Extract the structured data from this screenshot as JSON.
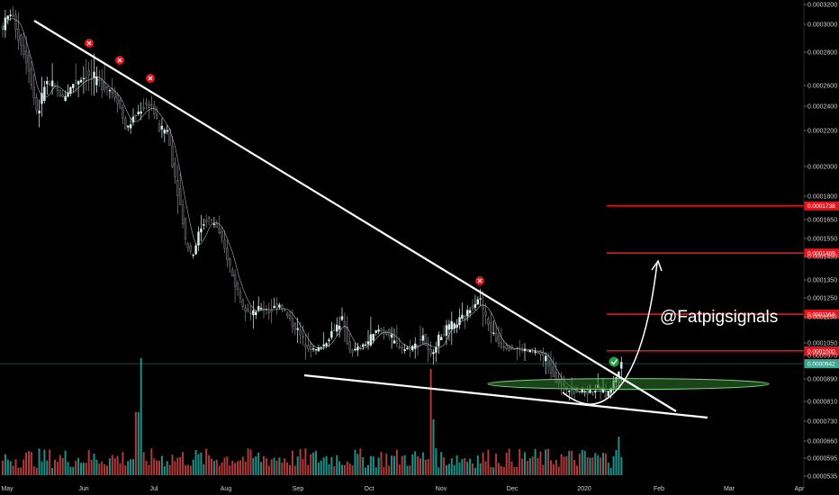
{
  "chart_data": {
    "type": "candlestick",
    "watermark": "@Fatpigsignals",
    "x_ticks": [
      "May",
      "Jun",
      "Jul",
      "Aug",
      "Sep",
      "Oct",
      "Nov",
      "Dec",
      "2020",
      "Feb",
      "Mar",
      "Apr"
    ],
    "y_ticks": [
      "0.0003200",
      "0.0003000",
      "0.0002800",
      "0.0002600",
      "0.0002400",
      "0.0002200",
      "0.0002000",
      "0.0001800",
      "0.0001650",
      "0.0001550",
      "0.0001450",
      "0.0001350",
      "0.0001250",
      "0.0001150",
      "0.0001050",
      "0.0000970",
      "0.0000890",
      "0.0000810",
      "0.0000730",
      "0.0000660",
      "0.0000595",
      "0.0000535"
    ],
    "ylim": [
      5.35e-05,
      0.00032
    ],
    "current_price": {
      "label": "0.0000942",
      "value": 9.42e-05,
      "color": "#3aa892"
    },
    "resistance_levels": [
      {
        "label": "0.0001738",
        "value": 0.0001738
      },
      {
        "label": "0.0001469",
        "value": 0.0001469
      },
      {
        "label": "0.0001164",
        "value": 0.0001164
      },
      {
        "label": "0.0001000",
        "value": 0.0001
      }
    ],
    "level_color": "#e8141c",
    "up_color": "#d9f2ec",
    "down_color": "#26272c",
    "up_volume_color": "#1f8f85",
    "down_volume_color": "#b0393a",
    "trendline_color": "#ffffff",
    "rejection_marker_color": "#e8141c",
    "breakout_marker_color": "#22a245",
    "support_zone_color": "#2f7d32",
    "rejection_markers": [
      "May-Jun top",
      "Jun top",
      "Jul top",
      "Nov top"
    ],
    "breakout_marker": "Jan 2020 breakout"
  }
}
